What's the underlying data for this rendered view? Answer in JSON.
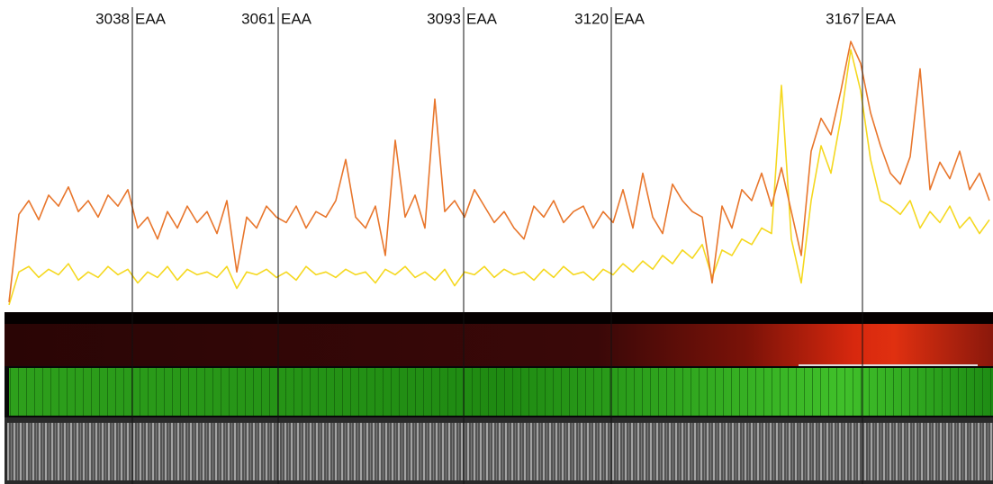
{
  "chart_data": {
    "type": "line",
    "ylim": [
      0,
      100
    ],
    "markers": [
      {
        "year": 3038,
        "era": "EAA"
      },
      {
        "year": 3061,
        "era": "EAA"
      },
      {
        "year": 3093,
        "era": "EAA"
      },
      {
        "year": 3120,
        "era": "EAA"
      },
      {
        "year": 3167,
        "era": "EAA"
      }
    ],
    "series": [
      {
        "color": "#f5d820",
        "values": [
          2,
          14,
          16,
          12,
          15,
          13,
          17,
          11,
          14,
          12,
          16,
          13,
          15,
          10,
          14,
          12,
          16,
          11,
          15,
          13,
          14,
          12,
          16,
          8,
          14,
          13,
          15,
          12,
          14,
          11,
          16,
          13,
          14,
          12,
          15,
          13,
          14,
          10,
          15,
          13,
          16,
          12,
          14,
          11,
          15,
          9,
          14,
          13,
          16,
          12,
          15,
          13,
          14,
          11,
          15,
          12,
          16,
          13,
          14,
          11,
          15,
          13,
          17,
          14,
          18,
          15,
          20,
          17,
          22,
          19,
          24,
          12,
          22,
          20,
          26,
          24,
          30,
          28,
          82,
          26,
          10,
          40,
          60,
          50,
          70,
          95,
          80,
          55,
          40,
          38,
          35,
          40,
          30,
          36,
          32,
          38,
          30,
          34,
          28,
          33
        ]
      },
      {
        "color": "#e8762c",
        "values": [
          3,
          35,
          40,
          33,
          42,
          38,
          45,
          36,
          40,
          34,
          42,
          38,
          44,
          30,
          34,
          26,
          36,
          30,
          38,
          32,
          36,
          28,
          40,
          14,
          34,
          30,
          38,
          34,
          32,
          38,
          30,
          36,
          34,
          40,
          55,
          34,
          30,
          38,
          20,
          62,
          34,
          42,
          30,
          77,
          36,
          40,
          34,
          44,
          38,
          32,
          36,
          30,
          26,
          38,
          34,
          40,
          32,
          36,
          38,
          30,
          36,
          32,
          44,
          30,
          50,
          34,
          28,
          46,
          40,
          36,
          34,
          10,
          38,
          30,
          44,
          40,
          50,
          38,
          52,
          36,
          20,
          58,
          70,
          64,
          80,
          98,
          90,
          72,
          60,
          50,
          46,
          56,
          88,
          44,
          54,
          48,
          58,
          44,
          50,
          40
        ]
      }
    ]
  }
}
